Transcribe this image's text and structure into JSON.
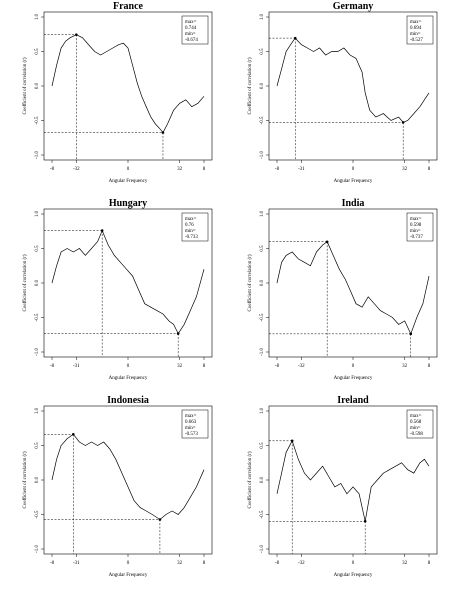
{
  "figure": {
    "xlabel": "Angular Frequency",
    "ylabel": "Coefficient of correlation (r)",
    "y_ticks": [
      "-1.0",
      "-0.5",
      "0.0",
      "0.5",
      "1.0"
    ],
    "ylim": [
      -1.0,
      1.0
    ],
    "xlim": [
      0,
      1
    ]
  },
  "chart_data": [
    {
      "type": "line",
      "title": "France",
      "xlabel": "Angular Frequency",
      "ylabel": "Coefficient of correlation (r)",
      "x_tick_labels": [
        "-8",
        "-32",
        "0",
        "32",
        "8"
      ],
      "legend": [
        "max=",
        "0.744",
        "min=",
        "-0.674"
      ],
      "max": {
        "x": 0.16,
        "y": 0.744
      },
      "min": {
        "x": 0.73,
        "y": -0.674
      },
      "series": [
        {
          "x": [
            0,
            0.03,
            0.06,
            0.09,
            0.12,
            0.16,
            0.2,
            0.24,
            0.28,
            0.32,
            0.36,
            0.4,
            0.44,
            0.47,
            0.5,
            0.53,
            0.56,
            0.59,
            0.62,
            0.65,
            0.68,
            0.71,
            0.73,
            0.76,
            0.8,
            0.84,
            0.88,
            0.92,
            0.96,
            1.0
          ],
          "y": [
            0.0,
            0.3,
            0.55,
            0.65,
            0.7,
            0.744,
            0.7,
            0.6,
            0.5,
            0.45,
            0.5,
            0.55,
            0.6,
            0.62,
            0.55,
            0.3,
            0.05,
            -0.15,
            -0.3,
            -0.45,
            -0.55,
            -0.62,
            -0.674,
            -0.55,
            -0.35,
            -0.25,
            -0.2,
            -0.3,
            -0.25,
            -0.15
          ]
        }
      ]
    },
    {
      "type": "line",
      "title": "Germany",
      "xlabel": "Angular Frequency",
      "ylabel": "Coefficient of correlation (r)",
      "x_tick_labels": [
        "-8",
        "-31",
        "0",
        "32",
        "8"
      ],
      "legend": [
        "max=",
        "0.694",
        "min=",
        "-0.527"
      ],
      "max": {
        "x": 0.12,
        "y": 0.694
      },
      "min": {
        "x": 0.83,
        "y": -0.527
      },
      "series": [
        {
          "x": [
            0,
            0.03,
            0.06,
            0.09,
            0.12,
            0.16,
            0.2,
            0.24,
            0.28,
            0.32,
            0.36,
            0.4,
            0.44,
            0.48,
            0.52,
            0.56,
            0.58,
            0.61,
            0.65,
            0.7,
            0.75,
            0.8,
            0.83,
            0.86,
            0.9,
            0.94,
            0.97,
            1.0
          ],
          "y": [
            0.0,
            0.25,
            0.5,
            0.6,
            0.694,
            0.6,
            0.55,
            0.5,
            0.55,
            0.45,
            0.5,
            0.5,
            0.55,
            0.45,
            0.4,
            0.2,
            -0.1,
            -0.35,
            -0.45,
            -0.4,
            -0.5,
            -0.45,
            -0.527,
            -0.5,
            -0.4,
            -0.3,
            -0.2,
            -0.1
          ]
        }
      ]
    },
    {
      "type": "line",
      "title": "Hungary",
      "xlabel": "Angular Frequency",
      "ylabel": "Coefficient of correlation (r)",
      "x_tick_labels": [
        "-8",
        "-31",
        "0",
        "32",
        "8"
      ],
      "legend": [
        "max=",
        "0.76",
        "min=",
        "-0.733"
      ],
      "max": {
        "x": 0.33,
        "y": 0.76
      },
      "min": {
        "x": 0.83,
        "y": -0.733
      },
      "series": [
        {
          "x": [
            0,
            0.03,
            0.06,
            0.1,
            0.14,
            0.18,
            0.22,
            0.26,
            0.3,
            0.33,
            0.37,
            0.41,
            0.45,
            0.49,
            0.53,
            0.57,
            0.61,
            0.65,
            0.69,
            0.73,
            0.77,
            0.8,
            0.83,
            0.87,
            0.91,
            0.95,
            1.0
          ],
          "y": [
            0.0,
            0.25,
            0.45,
            0.5,
            0.45,
            0.5,
            0.4,
            0.5,
            0.6,
            0.76,
            0.55,
            0.4,
            0.3,
            0.2,
            0.1,
            -0.1,
            -0.3,
            -0.35,
            -0.4,
            -0.45,
            -0.55,
            -0.6,
            -0.733,
            -0.6,
            -0.4,
            -0.2,
            0.2
          ]
        }
      ]
    },
    {
      "type": "line",
      "title": "India",
      "xlabel": "Angular Frequency",
      "ylabel": "Coefficient of correlation (r)",
      "x_tick_labels": [
        "-8",
        "-32",
        "0",
        "32",
        "8"
      ],
      "legend": [
        "max=",
        "0.598",
        "min=",
        "-0.737"
      ],
      "max": {
        "x": 0.33,
        "y": 0.598
      },
      "min": {
        "x": 0.88,
        "y": -0.737
      },
      "series": [
        {
          "x": [
            0,
            0.03,
            0.06,
            0.1,
            0.14,
            0.18,
            0.22,
            0.26,
            0.3,
            0.33,
            0.37,
            0.41,
            0.45,
            0.48,
            0.52,
            0.56,
            0.6,
            0.64,
            0.68,
            0.72,
            0.76,
            0.8,
            0.84,
            0.88,
            0.92,
            0.96,
            1.0
          ],
          "y": [
            0.0,
            0.3,
            0.4,
            0.45,
            0.35,
            0.3,
            0.25,
            0.45,
            0.55,
            0.598,
            0.4,
            0.2,
            0.05,
            -0.1,
            -0.3,
            -0.35,
            -0.2,
            -0.3,
            -0.4,
            -0.45,
            -0.5,
            -0.6,
            -0.55,
            -0.737,
            -0.5,
            -0.3,
            0.1
          ]
        }
      ]
    },
    {
      "type": "line",
      "title": "Indonesia",
      "xlabel": "Angular Frequency",
      "ylabel": "Coefficient of correlation (r)",
      "x_tick_labels": [
        "-8",
        "-31",
        "0",
        "32",
        "8"
      ],
      "legend": [
        "max=",
        "0.663",
        "min=",
        "-0.573"
      ],
      "max": {
        "x": 0.14,
        "y": 0.663
      },
      "min": {
        "x": 0.71,
        "y": -0.573
      },
      "series": [
        {
          "x": [
            0,
            0.03,
            0.06,
            0.1,
            0.14,
            0.18,
            0.22,
            0.26,
            0.3,
            0.34,
            0.38,
            0.42,
            0.46,
            0.5,
            0.54,
            0.58,
            0.62,
            0.66,
            0.71,
            0.75,
            0.79,
            0.83,
            0.87,
            0.91,
            0.95,
            1.0
          ],
          "y": [
            0.0,
            0.3,
            0.5,
            0.6,
            0.663,
            0.55,
            0.5,
            0.55,
            0.5,
            0.55,
            0.45,
            0.3,
            0.1,
            -0.1,
            -0.3,
            -0.4,
            -0.45,
            -0.5,
            -0.573,
            -0.5,
            -0.45,
            -0.5,
            -0.4,
            -0.25,
            -0.1,
            0.15
          ]
        }
      ]
    },
    {
      "type": "line",
      "title": "Ireland",
      "xlabel": "Angular Frequency",
      "ylabel": "Coefficient of correlation (r)",
      "x_tick_labels": [
        "-8",
        "-32",
        "0",
        "32",
        "8"
      ],
      "legend": [
        "max=",
        "0.568",
        "min=",
        "-0.598"
      ],
      "max": {
        "x": 0.1,
        "y": 0.568
      },
      "min": {
        "x": 0.58,
        "y": -0.598
      },
      "series": [
        {
          "x": [
            0,
            0.03,
            0.06,
            0.1,
            0.14,
            0.18,
            0.22,
            0.26,
            0.3,
            0.34,
            0.38,
            0.42,
            0.46,
            0.5,
            0.54,
            0.58,
            0.62,
            0.66,
            0.7,
            0.74,
            0.78,
            0.82,
            0.86,
            0.9,
            0.94,
            0.97,
            1.0
          ],
          "y": [
            -0.2,
            0.1,
            0.4,
            0.568,
            0.3,
            0.1,
            0.0,
            0.1,
            0.2,
            0.05,
            -0.1,
            -0.05,
            -0.2,
            -0.1,
            -0.2,
            -0.598,
            -0.1,
            0.0,
            0.1,
            0.15,
            0.2,
            0.25,
            0.15,
            0.1,
            0.25,
            0.3,
            0.2
          ]
        }
      ]
    }
  ]
}
